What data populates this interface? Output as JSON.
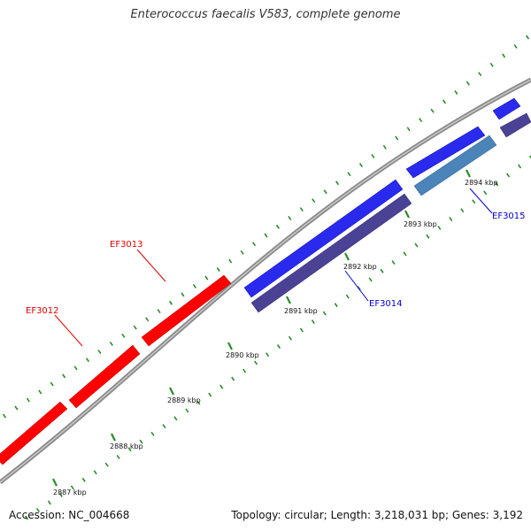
{
  "title": "Enterococcus faecalis V583, complete genome",
  "footer": {
    "accession": "Accession: NC_004668",
    "summary": "Topology: circular; Length: 3,218,031 bp; Genes: 3,192"
  },
  "colors": {
    "backbone": "#8a8a8a",
    "tick": "#2a8a2a",
    "forward_gene": "#ff0000",
    "reverse_gene": "#0000ee",
    "forward_cds": "#3333ee",
    "reverse_cds_dark": "#443c8c",
    "reverse_cds_light": "#4a7fb0",
    "label_forward": "#dd0000",
    "label_reverse": "#0000cc"
  },
  "ticks": [
    {
      "label": "2887 kbp"
    },
    {
      "label": "2888 kbp"
    },
    {
      "label": "2889 kbp"
    },
    {
      "label": "2890 kbp"
    },
    {
      "label": "2891 kbp"
    },
    {
      "label": "2892 kbp"
    },
    {
      "label": "2893 kbp"
    },
    {
      "label": "2894 kbp"
    }
  ],
  "genes": [
    {
      "name": "EF3012",
      "strand": "forward",
      "type": "gene"
    },
    {
      "name": "EF3013",
      "strand": "forward",
      "type": "gene"
    },
    {
      "name": "EF3014",
      "strand": "reverse",
      "type": "gene"
    },
    {
      "name": "EF3015",
      "strand": "reverse",
      "type": "gene"
    }
  ]
}
